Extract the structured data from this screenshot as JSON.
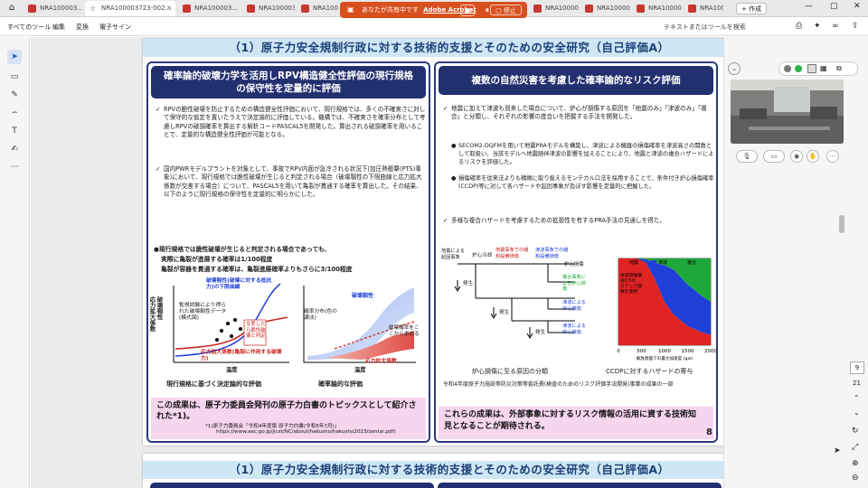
{
  "tabs": [
    {
      "label": "NRA100003..."
    },
    {
      "label": "NRA100003723-002..."
    },
    {
      "label": "NRA100003..."
    },
    {
      "label": "NRA100003..."
    },
    {
      "label": "NRA100003..."
    },
    {
      "label": "NRA100003..."
    },
    {
      "label": "NRA100003..."
    },
    {
      "label": "NRA100003..."
    },
    {
      "label": "NRA10C"
    }
  ],
  "share_bar": {
    "text": "あなたが共有中です",
    "app": "Adobe Acrobat",
    "stop_label": "停止"
  },
  "new_tab_label": "+ 作成",
  "menu": {
    "items": [
      "すべてのツール",
      "編集",
      "変換",
      "電子サイン"
    ],
    "search_placeholder": "テキストまたはツールを検索"
  },
  "page_header": "（1）原子力安全規制行政に対する技術的支援とそのための安全研究（自己評価A）",
  "left_panel": {
    "title": "確率論的破壊力学を活用しRPV構造健全性評価の現行規格の保守性を定量的に評価",
    "bullet1": "RPVの脆性破壊を防止するための構造健全性評価において、現行規格では、多くの不確実さに対して保守的な仮定を置いたうえで決定論的に評価している。機構では、不確実さを確率分布として考慮しRPVの破損確率を算出する解析コードPASCAL5を開発した。算出される破損確率を用いることで、定量的な構造健全性評価が可能となる。",
    "bullet2": "国内PWRモデルプラントを対象として、事故でRPV内面が急冷される状況下(加圧熱衝撃(PTS)事象)において、現行規格では脆性破壊が生じると判定される場合（破壊靱性の下限曲線と応力拡大係数が交差する場合）について、PASCAL5を用いて亀裂が貫通する確率を算出した。その結果、以下のように現行規格の保守性を定量的に明らかにした。",
    "finding1": "●現行規格では脆性破壊が生じると判定される場合であっても、",
    "finding2": "実際に亀裂が進展する確率は1/100程度",
    "finding3": "亀裂が容器を貫通する確率は、亀裂進展確率よりもさらに3/100程度",
    "chart_labels": {
      "left_ylabel": "破壊靱性\n応力拡大係数",
      "lower_bound": "破壊靱性(破壊に対する抵抗力)の下限曲線",
      "test_data": "監視試験により得られた破壊靱性データ(模式図)",
      "intersect": "交差したら脆性破壊と判定",
      "kfactor": "応力拡大係数(亀裂に作用する破壊力)",
      "temp": "温度",
      "right_top": "破壊靱性",
      "prob_dist": "確率分布(色の濃淡)",
      "compute": "破壊確率をここから求める",
      "right_k": "応力拡大係数",
      "right_temp": "温度"
    },
    "caption_left": "現行規格に基づく決定論的な評価",
    "caption_right": "確率論的な評価",
    "conclusion": "この成果は、原子力委員会発刊の原子力白書のトピックスとして紹介された*1)。",
    "footnote1": "*1)原子力委員会「令和4年度版 原子力白書(令和5年7月)」",
    "footnote2": "https://www.aec.go.jp/jicst/NC/about/hakusho/hakusho2023/zentai.pdf)"
  },
  "right_panel": {
    "title": "複数の自然災害を考慮した確率論的なリスク評価",
    "bullet1": "地震に加えて津波も到来した場合について、炉心が損傷する原因を「地震のみ」「津波のみ」「複合」と分類し、それぞれの影響の度合いを把握する手法を開発した。",
    "sub1": "SECOM2-DQFMを用いて地震PRAモデルを構築し、津波による機器の損傷確率を津波高さの関数として取扱い、当該モデルへ地震随伴津波の影響を加えることにより、地震と津波の複合ハザードによるリスクを評価した。",
    "sub2": "損傷確率を従来法よりも精緻に取り扱えるモンテカルロ法を採用することで、条件付き炉心損傷確率(CCDP)等に対して各ハザードや起因事象が及ぼす影響を定量的に把握した。",
    "bullet2": "多様な複合ハザードを考慮するための拡張性を有するPRA手法の見通しを得た。",
    "tree_labels": {
      "initiating": "地震による起因事象",
      "core_cooling": "炉心冷却",
      "quake_damage": "地震事象での緩和設備損傷",
      "tsunami_damage": "津波事象での緩和設備損傷",
      "cd_quake": "炉心損傷",
      "cd_combined": "複合事象による炉心損傷",
      "cd_tsunami": "津波による炉心損傷",
      "cd_tsunami2": "津波による炉心損傷",
      "occur1": "発生",
      "occur2": "発生",
      "occur3": "発生"
    },
    "caption_left": "炉心損傷に至る原因の分類",
    "caption_right": "CCDPに対するハザードの寄与",
    "note": "令和4年度原子力施設等防災対策等委託費(検査のためのリスク評価手法開発)事業の成果の一部",
    "conclusion": "これらの成果は、外部事象に対するリスク情報の活用に資する技術知見となることが期待される。",
    "page_number": "8"
  },
  "chart_data": {
    "type": "area",
    "title": "",
    "xlabel": "解放基盤での最大加速度 (gal)",
    "ylabel": "",
    "xlim": [
      0,
      2000
    ],
    "ylim": [
      0,
      1
    ],
    "xticks": [
      "0",
      "500",
      "1000",
      "1500",
      "2000"
    ],
    "legend": [
      "地震",
      "津波",
      "複合"
    ],
    "legend_colors": [
      "#e02424",
      "#1f3fd8",
      "#1fa83a"
    ],
    "annotation": "津波損傷確率0.5のステップ関数を使用",
    "x": [
      0,
      400,
      600,
      800,
      1000,
      1200,
      1500,
      1800,
      2000
    ],
    "series": [
      {
        "name": "地震",
        "values": [
          1.0,
          1.0,
          0.95,
          0.75,
          0.5,
          0.35,
          0.22,
          0.15,
          0.12
        ]
      },
      {
        "name": "津波",
        "values": [
          0.0,
          0.0,
          0.04,
          0.2,
          0.42,
          0.52,
          0.48,
          0.42,
          0.38
        ]
      },
      {
        "name": "複合",
        "values": [
          0.0,
          0.0,
          0.01,
          0.05,
          0.08,
          0.13,
          0.3,
          0.43,
          0.5
        ]
      }
    ]
  },
  "page2_header": "（1）原子力安全規制行政に対する技術的支援とそのための安全研究（自己評価A）",
  "page_nav": {
    "current": "9",
    "total": "21"
  },
  "colors": {
    "header_bg": "#cfe7f4",
    "title_bg": "#23306f",
    "share": "#d8501f",
    "conclusion_bg": "#f6d5ef"
  }
}
